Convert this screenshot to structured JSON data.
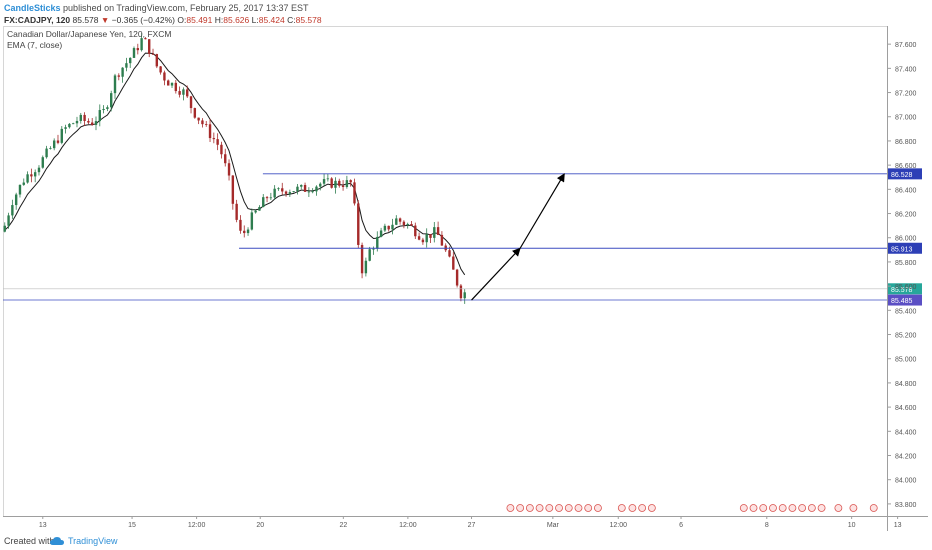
{
  "header": {
    "author": "CandleSticks",
    "published_text": "published on TradingView.com, February 25, 2017 13:37 EST",
    "symbol": "FX:CADJPY, 120",
    "last_price": "85.578",
    "change_arrow": "▼",
    "change": "−0.365 (−0.42%)",
    "o_label": "O:",
    "o_value": "85.491",
    "h_label": "H:",
    "h_value": "85.626",
    "l_label": "L:",
    "l_value": "85.424",
    "c_label": "C:",
    "c_value": "85.578"
  },
  "legend": {
    "instrument": "Canadian Dollar/Japanese Yen, 120, FXCM",
    "indicator": "EMA (7, close)"
  },
  "footer": {
    "created_with": "Created with",
    "brand": "TradingView"
  },
  "colors": {
    "up": "#2e7d4f",
    "down": "#a52a2a",
    "ema": "#1a1a1a",
    "level": "#3b4cc0",
    "axis_text": "#555555",
    "badge_blue": "#2d3fb6",
    "badge_last": "#26a69a",
    "badge_level_low": "#5b4fc4"
  },
  "chart_data": {
    "type": "candlestick",
    "ylim": [
      83.7,
      87.75
    ],
    "y_ticks": [
      "87.600",
      "87.400",
      "87.200",
      "87.000",
      "86.800",
      "86.600",
      "86.400",
      "86.200",
      "86.000",
      "85.800",
      "85.600",
      "85.400",
      "85.200",
      "85.000",
      "84.800",
      "84.600",
      "84.400",
      "84.200",
      "84.000",
      "83.800"
    ],
    "x_ticks": [
      {
        "label": "13",
        "frac": 0.045
      },
      {
        "label": "15",
        "frac": 0.146
      },
      {
        "label": "12:00",
        "frac": 0.219
      },
      {
        "label": "20",
        "frac": 0.291
      },
      {
        "label": "22",
        "frac": 0.385
      },
      {
        "label": "12:00",
        "frac": 0.458
      },
      {
        "label": "27",
        "frac": 0.53
      },
      {
        "label": "Mar",
        "frac": 0.622
      },
      {
        "label": "12:00",
        "frac": 0.696
      },
      {
        "label": "6",
        "frac": 0.767
      },
      {
        "label": "8",
        "frac": 0.864
      },
      {
        "label": "10",
        "frac": 0.96
      },
      {
        "label": "13",
        "frac": 1.012
      }
    ],
    "levels": [
      {
        "value": 86.528,
        "label": "86.528",
        "from_frac": 0.294
      },
      {
        "value": 85.913,
        "label": "85.913",
        "from_frac": 0.267
      },
      {
        "value": 85.485,
        "label": "85.485",
        "from_frac": 0.0
      }
    ],
    "last_price": {
      "value": 85.578,
      "label": "85.578"
    },
    "projection": [
      {
        "from": [
          85.485,
          0.53
        ],
        "to": [
          85.913,
          0.585
        ]
      },
      {
        "from": [
          85.913,
          0.585
        ],
        "to": [
          86.528,
          0.635
        ]
      }
    ],
    "anchors": [
      [
        0.0,
        86.05
      ],
      [
        0.01,
        86.3
      ],
      [
        0.025,
        86.5
      ],
      [
        0.04,
        86.6
      ],
      [
        0.055,
        86.75
      ],
      [
        0.07,
        86.9
      ],
      [
        0.085,
        86.98
      ],
      [
        0.1,
        86.95
      ],
      [
        0.115,
        87.05
      ],
      [
        0.128,
        87.35
      ],
      [
        0.14,
        87.45
      ],
      [
        0.15,
        87.55
      ],
      [
        0.158,
        87.65
      ],
      [
        0.166,
        87.55
      ],
      [
        0.175,
        87.4
      ],
      [
        0.185,
        87.3
      ],
      [
        0.195,
        87.25
      ],
      [
        0.205,
        87.2
      ],
      [
        0.215,
        87.05
      ],
      [
        0.225,
        86.95
      ],
      [
        0.235,
        86.85
      ],
      [
        0.245,
        86.75
      ],
      [
        0.255,
        86.5
      ],
      [
        0.262,
        86.2
      ],
      [
        0.27,
        86.0
      ],
      [
        0.28,
        86.15
      ],
      [
        0.29,
        86.25
      ],
      [
        0.3,
        86.35
      ],
      [
        0.32,
        86.4
      ],
      [
        0.34,
        86.4
      ],
      [
        0.36,
        86.45
      ],
      [
        0.38,
        86.45
      ],
      [
        0.395,
        86.45
      ],
      [
        0.4,
        86.05
      ],
      [
        0.407,
        85.7
      ],
      [
        0.415,
        85.9
      ],
      [
        0.43,
        86.05
      ],
      [
        0.445,
        86.15
      ],
      [
        0.46,
        86.1
      ],
      [
        0.475,
        86.0
      ],
      [
        0.49,
        86.05
      ],
      [
        0.5,
        85.9
      ],
      [
        0.508,
        85.75
      ],
      [
        0.515,
        85.6
      ],
      [
        0.52,
        85.5
      ],
      [
        0.524,
        85.58
      ]
    ]
  }
}
